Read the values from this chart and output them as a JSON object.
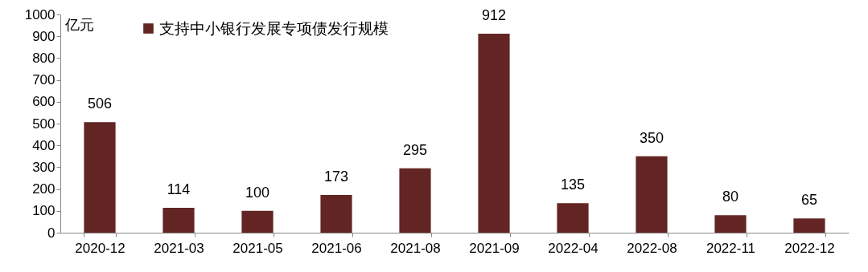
{
  "chart_data": {
    "type": "bar",
    "ylabel": "亿元",
    "categories": [
      "2020-12",
      "2021-03",
      "2021-05",
      "2021-06",
      "2021-08",
      "2021-09",
      "2022-04",
      "2022-08",
      "2022-11",
      "2022-12"
    ],
    "series": [
      {
        "name": "支持中小银行发展专项债发行规模",
        "color": "#632523",
        "values": [
          506,
          114,
          100,
          173,
          295,
          912,
          135,
          350,
          80,
          65
        ]
      }
    ],
    "ylim": [
      0,
      1000
    ],
    "yticks": [
      0,
      100,
      200,
      300,
      400,
      500,
      600,
      700,
      800,
      900,
      1000
    ],
    "data_labels": true,
    "legend": "top left",
    "grid": false
  }
}
